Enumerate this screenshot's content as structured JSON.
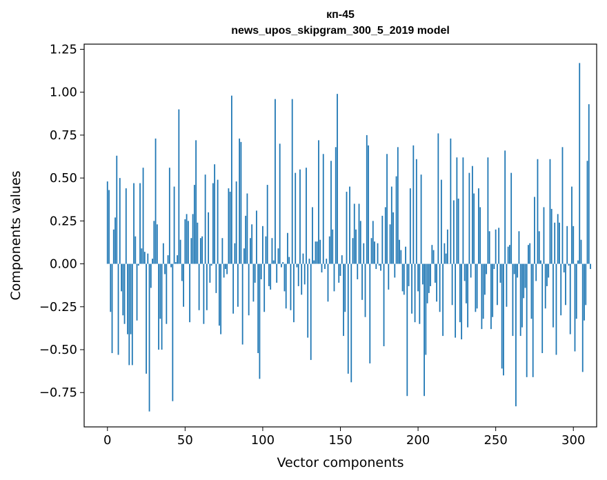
{
  "chart_data": {
    "type": "bar",
    "title": "кп-45",
    "subtitle": "news_upos_skipgram_300_5_2019 model",
    "xlabel": "Vector components",
    "ylabel": "Components values",
    "xlim": [
      -15,
      315
    ],
    "ylim": [
      -0.95,
      1.28
    ],
    "xticks": [
      0,
      50,
      100,
      150,
      200,
      250,
      300
    ],
    "xtick_labels": [
      "0",
      "50",
      "100",
      "150",
      "200",
      "250",
      "300"
    ],
    "yticks": [
      -0.75,
      -0.5,
      -0.25,
      0.0,
      0.25,
      0.5,
      0.75,
      1.0,
      1.25
    ],
    "ytick_labels": [
      "−0.75",
      "−0.50",
      "−0.25",
      "0.00",
      "0.25",
      "0.50",
      "0.75",
      "1.00",
      "1.25"
    ],
    "bar_color": "#1f77b4",
    "grid": false,
    "legend": "none",
    "values": [
      0.48,
      0.43,
      -0.28,
      -0.52,
      0.2,
      0.27,
      0.63,
      -0.53,
      0.5,
      -0.16,
      -0.3,
      -0.35,
      0.44,
      -0.41,
      -0.59,
      -0.41,
      -0.59,
      0.47,
      0.16,
      -0.33,
      -0.01,
      0.47,
      0.09,
      0.56,
      0.07,
      -0.64,
      0.06,
      -0.86,
      -0.14,
      0.03,
      0.25,
      0.73,
      0.23,
      -0.5,
      -0.32,
      -0.5,
      0.12,
      -0.06,
      -0.35,
      0.05,
      0.56,
      -0.02,
      -0.8,
      0.45,
      0.01,
      0.05,
      0.9,
      0.14,
      -0.1,
      -0.25,
      0.26,
      0.29,
      0.25,
      -0.34,
      0.15,
      0.29,
      0.46,
      0.72,
      0.24,
      -0.27,
      0.15,
      0.16,
      -0.35,
      0.52,
      -0.27,
      0.3,
      -0.11,
      -0.01,
      0.47,
      0.58,
      -0.17,
      0.49,
      -0.36,
      -0.41,
      0.15,
      -0.08,
      -0.03,
      -0.06,
      0.44,
      0.42,
      0.98,
      -0.29,
      0.12,
      0.48,
      -0.25,
      0.73,
      0.71,
      -0.47,
      0.09,
      0.28,
      0.41,
      -0.3,
      0.15,
      0.23,
      -0.22,
      -0.11,
      0.31,
      -0.52,
      -0.67,
      -0.09,
      0.22,
      -0.28,
      0.16,
      0.46,
      -0.13,
      -0.15,
      0.15,
      0.02,
      0.96,
      -0.11,
      0.09,
      0.7,
      -0.02,
      0.01,
      -0.16,
      -0.26,
      0.18,
      0.04,
      -0.27,
      0.96,
      -0.34,
      0.53,
      -0.02,
      -0.13,
      0.55,
      -0.18,
      0.06,
      -0.12,
      0.56,
      -0.43,
      0.03,
      -0.56,
      0.33,
      0.02,
      0.13,
      0.13,
      0.72,
      0.14,
      -0.05,
      0.64,
      -0.03,
      0.03,
      -0.22,
      0.16,
      0.6,
      0.2,
      -0.16,
      0.68,
      0.99,
      -0.11,
      -0.07,
      0.05,
      -0.42,
      -0.28,
      0.42,
      -0.64,
      0.45,
      -0.69,
      0.15,
      0.35,
      0.2,
      -0.09,
      0.35,
      0.25,
      -0.21,
      0.12,
      -0.31,
      0.75,
      0.69,
      -0.58,
      0.15,
      0.25,
      0.13,
      -0.03,
      0.12,
      -0.01,
      -0.04,
      0.28,
      -0.48,
      0.33,
      0.64,
      -0.15,
      0.23,
      0.45,
      0.3,
      -0.08,
      0.51,
      0.68,
      0.14,
      0.08,
      -0.16,
      -0.18,
      0.1,
      -0.77,
      -0.13,
      0.44,
      -0.29,
      0.69,
      -0.34,
      0.61,
      -0.16,
      -0.35,
      0.52,
      -0.12,
      -0.77,
      -0.53,
      -0.23,
      -0.17,
      -0.13,
      0.11,
      0.08,
      -0.11,
      -0.22,
      0.76,
      -0.28,
      0.49,
      -0.42,
      0.12,
      0.06,
      0.2,
      0.0,
      0.73,
      -0.24,
      0.37,
      -0.43,
      0.62,
      0.38,
      -0.34,
      -0.44,
      0.62,
      -0.1,
      -0.23,
      -0.37,
      0.53,
      -0.08,
      0.57,
      0.41,
      -0.28,
      -0.26,
      0.44,
      0.33,
      -0.38,
      -0.32,
      -0.18,
      -0.06,
      0.62,
      0.19,
      -0.38,
      -0.31,
      -0.03,
      0.2,
      -0.24,
      0.21,
      -0.11,
      -0.61,
      -0.65,
      0.66,
      -0.25,
      0.1,
      0.11,
      0.53,
      -0.42,
      -0.06,
      -0.83,
      -0.08,
      0.19,
      -0.42,
      -0.37,
      -0.2,
      -0.14,
      -0.66,
      0.11,
      0.12,
      -0.32,
      -0.66,
      0.39,
      -0.1,
      0.61,
      0.19,
      0.02,
      -0.52,
      0.33,
      -0.26,
      -0.13,
      -0.08,
      0.61,
      0.32,
      -0.37,
      0.24,
      -0.53,
      0.29,
      0.24,
      -0.3,
      0.68,
      -0.05,
      -0.24,
      0.22,
      -0.01,
      -0.41,
      0.45,
      0.22,
      -0.51,
      -0.32,
      0.02,
      1.17,
      0.14,
      -0.63,
      -0.33,
      -0.24,
      0.6,
      0.93,
      -0.03
    ]
  }
}
